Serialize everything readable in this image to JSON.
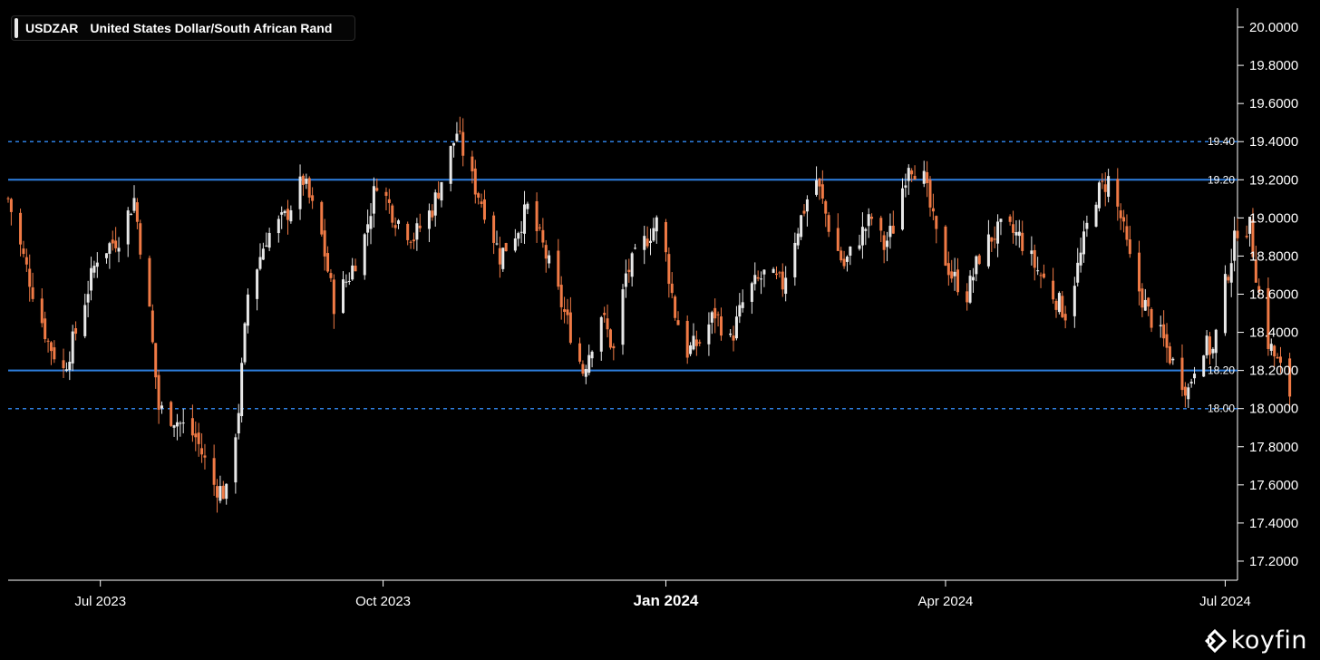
{
  "header": {
    "symbol": "USDZAR",
    "name": "United States Dollar/South African Rand"
  },
  "brand": {
    "name": "koyfin",
    "icon": "koyfin-logo-icon"
  },
  "colors": {
    "background": "#000000",
    "up": "#e8e8e8",
    "down": "#f07a45",
    "level_line": "#2e7fe0",
    "axis": "#ffffff"
  },
  "chart_data": {
    "type": "candlestick",
    "x_axis": {
      "start": "2023-06-01",
      "end": "2024-07-05",
      "ticks": [
        {
          "date": "2023-07-01",
          "label": "Jul 2023",
          "bold": false
        },
        {
          "date": "2023-10-01",
          "label": "Oct 2023",
          "bold": false
        },
        {
          "date": "2024-01-01",
          "label": "Jan 2024",
          "bold": true
        },
        {
          "date": "2024-04-01",
          "label": "Apr 2024",
          "bold": false
        },
        {
          "date": "2024-07-01",
          "label": "Jul 2024",
          "bold": false
        }
      ]
    },
    "y_axis": {
      "min": 17.1,
      "max": 20.1,
      "ticks": [
        "17.2000",
        "17.4000",
        "17.6000",
        "17.8000",
        "18.0000",
        "18.2000",
        "18.4000",
        "18.6000",
        "18.8000",
        "19.0000",
        "19.2000",
        "19.4000",
        "19.6000",
        "19.8000",
        "20.0000"
      ]
    },
    "levels": [
      {
        "value": 19.4,
        "label": "19.40",
        "style": "dashed"
      },
      {
        "value": 19.2,
        "label": "19.20",
        "style": "solid"
      },
      {
        "value": 18.2,
        "label": "18.20",
        "style": "solid"
      },
      {
        "value": 18.0,
        "label": "18.00",
        "style": "dashed"
      }
    ],
    "anchors": [
      [
        "2023-06-01",
        19.1
      ],
      [
        "2023-06-05",
        18.85
      ],
      [
        "2023-06-09",
        18.62
      ],
      [
        "2023-06-14",
        18.35
      ],
      [
        "2023-06-19",
        18.2
      ],
      [
        "2023-06-23",
        18.4
      ],
      [
        "2023-06-30",
        18.8
      ],
      [
        "2023-07-07",
        18.9
      ],
      [
        "2023-07-12",
        19.1
      ],
      [
        "2023-07-17",
        18.5
      ],
      [
        "2023-07-20",
        18.0
      ],
      [
        "2023-07-25",
        17.95
      ],
      [
        "2023-08-01",
        17.85
      ],
      [
        "2023-08-07",
        17.6
      ],
      [
        "2023-08-11",
        17.55
      ],
      [
        "2023-08-15",
        18.0
      ],
      [
        "2023-08-18",
        18.6
      ],
      [
        "2023-08-24",
        18.9
      ],
      [
        "2023-08-30",
        19.0
      ],
      [
        "2023-09-05",
        19.2
      ],
      [
        "2023-09-11",
        18.9
      ],
      [
        "2023-09-15",
        18.55
      ],
      [
        "2023-09-20",
        18.7
      ],
      [
        "2023-09-25",
        18.9
      ],
      [
        "2023-09-29",
        19.2
      ],
      [
        "2023-10-05",
        19.0
      ],
      [
        "2023-10-11",
        18.9
      ],
      [
        "2023-10-17",
        19.05
      ],
      [
        "2023-10-20",
        19.2
      ],
      [
        "2023-10-25",
        19.45
      ],
      [
        "2023-10-30",
        19.2
      ],
      [
        "2023-11-03",
        19.05
      ],
      [
        "2023-11-08",
        18.8
      ],
      [
        "2023-11-14",
        18.95
      ],
      [
        "2023-11-17",
        19.05
      ],
      [
        "2023-11-22",
        18.85
      ],
      [
        "2023-11-29",
        18.5
      ],
      [
        "2023-12-05",
        18.2
      ],
      [
        "2023-12-11",
        18.5
      ],
      [
        "2023-12-15",
        18.3
      ],
      [
        "2023-12-19",
        18.7
      ],
      [
        "2023-12-26",
        18.9
      ],
      [
        "2023-12-30",
        19.0
      ],
      [
        "2024-01-04",
        18.5
      ],
      [
        "2024-01-08",
        18.3
      ],
      [
        "2024-01-12",
        18.35
      ],
      [
        "2024-01-17",
        18.5
      ],
      [
        "2024-01-22",
        18.35
      ],
      [
        "2024-01-27",
        18.6
      ],
      [
        "2024-02-02",
        18.7
      ],
      [
        "2024-02-08",
        18.65
      ],
      [
        "2024-02-12",
        18.9
      ],
      [
        "2024-02-16",
        19.1
      ],
      [
        "2024-02-19",
        19.2
      ],
      [
        "2024-02-24",
        18.9
      ],
      [
        "2024-02-28",
        18.75
      ],
      [
        "2024-03-04",
        18.9
      ],
      [
        "2024-03-08",
        19.0
      ],
      [
        "2024-03-12",
        18.85
      ],
      [
        "2024-03-15",
        18.95
      ],
      [
        "2024-03-20",
        19.3
      ],
      [
        "2024-03-25",
        19.2
      ],
      [
        "2024-03-29",
        18.9
      ],
      [
        "2024-04-03",
        18.7
      ],
      [
        "2024-04-08",
        18.6
      ],
      [
        "2024-04-12",
        18.8
      ],
      [
        "2024-04-16",
        18.9
      ],
      [
        "2024-04-20",
        18.95
      ],
      [
        "2024-04-25",
        18.9
      ],
      [
        "2024-04-30",
        18.75
      ],
      [
        "2024-05-06",
        18.6
      ],
      [
        "2024-05-10",
        18.5
      ],
      [
        "2024-05-15",
        18.8
      ],
      [
        "2024-05-19",
        19.1
      ],
      [
        "2024-05-24",
        19.2
      ],
      [
        "2024-05-28",
        19.0
      ],
      [
        "2024-06-01",
        18.7
      ],
      [
        "2024-06-06",
        18.5
      ],
      [
        "2024-06-11",
        18.35
      ],
      [
        "2024-06-15",
        18.2
      ],
      [
        "2024-06-19",
        18.1
      ],
      [
        "2024-06-23",
        18.35
      ],
      [
        "2024-06-27",
        18.3
      ],
      [
        "2024-07-01",
        18.65
      ],
      [
        "2024-07-05",
        18.95
      ],
      [
        "2024-07-09",
        18.95
      ],
      [
        "2024-07-12",
        18.6
      ],
      [
        "2024-07-15",
        18.35
      ],
      [
        "2024-07-19",
        18.2
      ],
      [
        "2024-07-22",
        18.08
      ]
    ]
  }
}
